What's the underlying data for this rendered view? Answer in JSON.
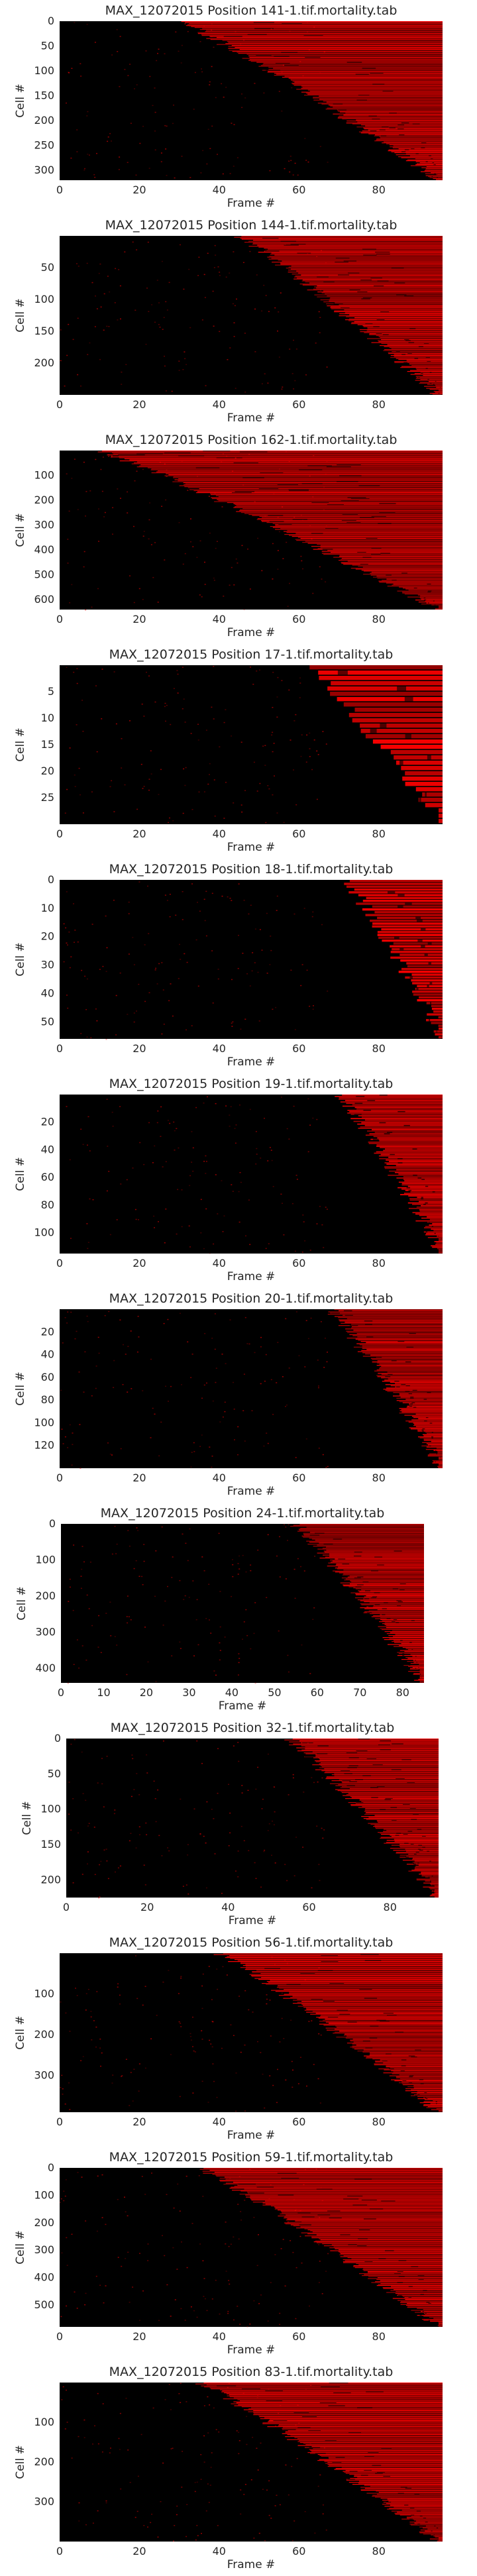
{
  "chart_data": [
    {
      "type": "heatmap",
      "title": "MAX_12072015 Position 141-1.tif.mortality.tab",
      "xlabel": "Frame #",
      "ylabel": "Cell #",
      "n_cells": 320,
      "n_frames": 96,
      "xticks": [
        0,
        20,
        40,
        60,
        80
      ],
      "yticks": [
        0,
        50,
        100,
        150,
        200,
        250,
        300
      ],
      "onset_range": [
        30,
        95
      ],
      "colormap": {
        "low": "#000000",
        "high": "#ff0000"
      },
      "grid": false
    },
    {
      "type": "heatmap",
      "title": "MAX_12072015 Position 144-1.tif.mortality.tab",
      "xlabel": "Frame #",
      "ylabel": "Cell #",
      "n_cells": 250,
      "n_frames": 96,
      "xticks": [
        0,
        20,
        40,
        60,
        80
      ],
      "yticks": [
        50,
        100,
        150,
        200
      ],
      "onset_range": [
        45,
        95
      ],
      "colormap": {
        "low": "#000000",
        "high": "#ff0000"
      },
      "grid": false
    },
    {
      "type": "heatmap",
      "title": "MAX_12072015 Position 162-1.tif.mortality.tab",
      "xlabel": "Frame #",
      "ylabel": "Cell #",
      "n_cells": 640,
      "n_frames": 96,
      "xticks": [
        0,
        20,
        40,
        60,
        80
      ],
      "yticks": [
        100,
        200,
        300,
        400,
        500,
        600
      ],
      "onset_range": [
        10,
        95
      ],
      "colormap": {
        "low": "#000000",
        "high": "#ff0000"
      },
      "grid": false
    },
    {
      "type": "heatmap",
      "title": "MAX_12072015 Position 17-1.tif.mortality.tab",
      "xlabel": "Frame #",
      "ylabel": "Cell #",
      "n_cells": 30,
      "n_frames": 96,
      "xticks": [
        0,
        20,
        40,
        60,
        80
      ],
      "yticks": [
        5,
        10,
        15,
        20,
        25
      ],
      "onset_range": [
        62,
        96
      ],
      "colormap": {
        "low": "#000000",
        "high": "#ff0000"
      },
      "grid": false
    },
    {
      "type": "heatmap",
      "title": "MAX_12072015 Position 18-1.tif.mortality.tab",
      "xlabel": "Frame #",
      "ylabel": "Cell #",
      "n_cells": 56,
      "n_frames": 96,
      "xticks": [
        0,
        20,
        40,
        60,
        80
      ],
      "yticks": [
        0,
        10,
        20,
        30,
        40,
        50
      ],
      "onset_range": [
        72,
        96
      ],
      "colormap": {
        "low": "#000000",
        "high": "#ff0000"
      },
      "grid": false
    },
    {
      "type": "heatmap",
      "title": "MAX_12072015 Position 19-1.tif.mortality.tab",
      "xlabel": "Frame #",
      "ylabel": "Cell #",
      "n_cells": 115,
      "n_frames": 96,
      "xticks": [
        0,
        20,
        40,
        60,
        80
      ],
      "yticks": [
        20,
        40,
        60,
        80,
        100
      ],
      "onset_range": [
        70,
        96
      ],
      "colormap": {
        "low": "#000000",
        "high": "#ff0000"
      },
      "grid": false
    },
    {
      "type": "heatmap",
      "title": "MAX_12072015 Position 20-1.tif.mortality.tab",
      "xlabel": "Frame #",
      "ylabel": "Cell #",
      "n_cells": 140,
      "n_frames": 96,
      "xticks": [
        0,
        20,
        40,
        60,
        80
      ],
      "yticks": [
        20,
        40,
        60,
        80,
        100,
        120
      ],
      "onset_range": [
        68,
        96
      ],
      "colormap": {
        "low": "#000000",
        "high": "#ff0000"
      },
      "grid": false
    },
    {
      "type": "heatmap",
      "title": "MAX_12072015 Position 24-1.tif.mortality.tab",
      "xlabel": "Frame #",
      "ylabel": "Cell #",
      "n_cells": 440,
      "n_frames": 85,
      "xticks": [
        0,
        10,
        20,
        30,
        40,
        50,
        60,
        70,
        80
      ],
      "yticks": [
        0,
        100,
        200,
        300,
        400
      ],
      "onset_range": [
        55,
        85
      ],
      "colormap": {
        "low": "#000000",
        "high": "#ff0000"
      },
      "grid": false
    },
    {
      "type": "heatmap",
      "title": "MAX_12072015 Position 32-1.tif.mortality.tab",
      "xlabel": "Frame #",
      "ylabel": "Cell #",
      "n_cells": 225,
      "n_frames": 92,
      "xticks": [
        0,
        20,
        40,
        60,
        80
      ],
      "yticks": [
        0,
        50,
        100,
        150,
        200
      ],
      "onset_range": [
        55,
        92
      ],
      "colormap": {
        "low": "#000000",
        "high": "#ff0000"
      },
      "grid": false
    },
    {
      "type": "heatmap",
      "title": "MAX_12072015 Position 56-1.tif.mortality.tab",
      "xlabel": "Frame #",
      "ylabel": "Cell #",
      "n_cells": 390,
      "n_frames": 96,
      "xticks": [
        0,
        20,
        40,
        60,
        80
      ],
      "yticks": [
        100,
        200,
        300
      ],
      "onset_range": [
        40,
        95
      ],
      "colormap": {
        "low": "#000000",
        "high": "#ff0000"
      },
      "grid": false
    },
    {
      "type": "heatmap",
      "title": "MAX_12072015 Position 59-1.tif.mortality.tab",
      "xlabel": "Frame #",
      "ylabel": "Cell #",
      "n_cells": 580,
      "n_frames": 96,
      "xticks": [
        0,
        20,
        40,
        60,
        80
      ],
      "yticks": [
        0,
        100,
        200,
        300,
        400,
        500
      ],
      "onset_range": [
        35,
        95
      ],
      "colormap": {
        "low": "#000000",
        "high": "#ff0000"
      },
      "grid": false
    },
    {
      "type": "heatmap",
      "title": "MAX_12072015 Position 83-1.tif.mortality.tab",
      "xlabel": "Frame #",
      "ylabel": "Cell #",
      "n_cells": 400,
      "n_frames": 96,
      "xticks": [
        0,
        20,
        40,
        60,
        80
      ],
      "yticks": [
        100,
        200,
        300
      ],
      "onset_range": [
        35,
        95
      ],
      "colormap": {
        "low": "#000000",
        "high": "#ff0000"
      },
      "grid": false
    }
  ]
}
